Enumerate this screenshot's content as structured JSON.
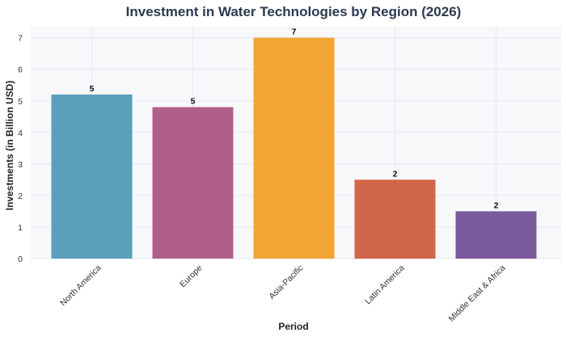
{
  "chart_data": {
    "type": "bar",
    "title": "Investment in Water Technologies by Region (2026)",
    "xlabel": "Period",
    "ylabel": "Investments (in Billion USD)",
    "categories": [
      "North America",
      "Europe",
      "Asia-Pacific",
      "Latin America",
      "Middle East & Africa"
    ],
    "values": [
      5.2,
      4.8,
      7.0,
      2.5,
      1.5
    ],
    "data_labels": [
      "5",
      "5",
      "7",
      "2",
      "2"
    ],
    "bar_colors": [
      "#5a9fbc",
      "#b05f8a",
      "#f0a535",
      "#d2664a",
      "#7a5a9c"
    ],
    "ylim": [
      0,
      7.35
    ],
    "yticks": [
      0,
      1,
      2,
      3,
      4,
      5,
      6,
      7
    ],
    "grid": true,
    "legend": "none"
  }
}
